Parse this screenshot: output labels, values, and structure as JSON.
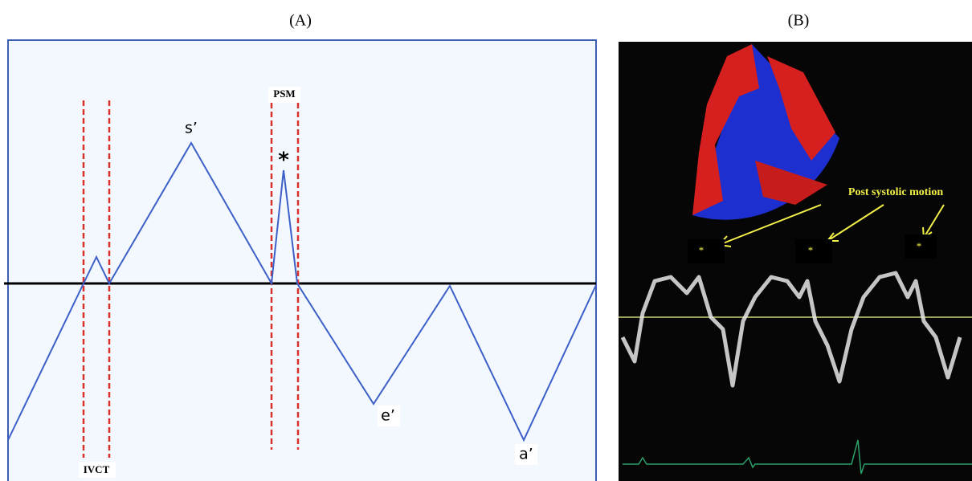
{
  "panel_a": {
    "label": "(A)",
    "peak_s": "s’",
    "peak_psm": "*",
    "psm": "PSM",
    "ivct": "IVCT",
    "trough_e": "e’",
    "trough_a": "a’"
  },
  "panel_b": {
    "label": "(B)",
    "annotation": "Post systolic motion",
    "markers": [
      "*",
      "*",
      "*"
    ]
  }
}
